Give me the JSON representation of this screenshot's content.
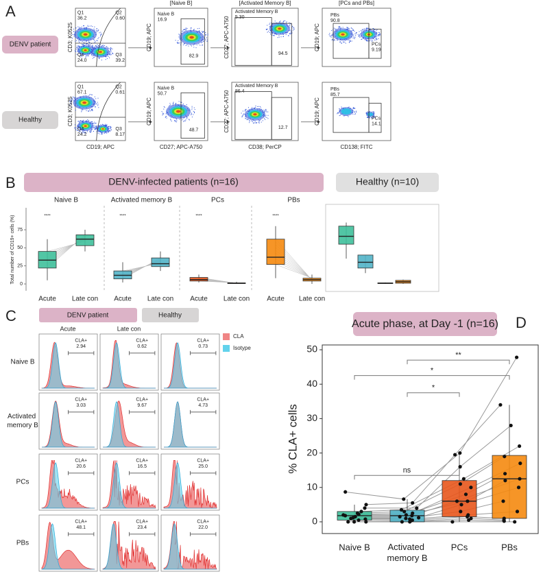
{
  "panel_a": {
    "label": "A",
    "headers": [
      "[Naive B]",
      "[Activated Memory B]",
      "[PCs and PBs]"
    ],
    "x_labels": [
      "CD19; APC",
      "CD27; APC-A750",
      "CD38; PerCP",
      "CD138; FITC"
    ],
    "y_labels": [
      "CD3; K0525",
      "CD19; APC",
      "CD27; APC-A750",
      "CD19; APC"
    ],
    "rows": [
      {
        "label": "DENV patient",
        "plots": [
          {
            "gates": [
              {
                "name": "Q1",
                "value": "36.2"
              },
              {
                "name": "Q2",
                "value": "0.60"
              },
              {
                "name": "Q3",
                "value": "39.2"
              },
              {
                "name": "Q4",
                "value": "24.0"
              }
            ]
          },
          {
            "gates": [
              {
                "name": "Naive B",
                "value": "16.9"
              },
              {
                "value": "82.9"
              }
            ]
          },
          {
            "gates": [
              {
                "name": "Activated Memory B",
                "value": "5.30"
              },
              {
                "value": "94.5"
              }
            ]
          },
          {
            "gates": [
              {
                "name": "PBs",
                "value": "90.8"
              },
              {
                "name": "PCs",
                "value": "9.19"
              }
            ]
          }
        ]
      },
      {
        "label": "Healthy",
        "plots": [
          {
            "gates": [
              {
                "name": "Q1",
                "value": "67.1"
              },
              {
                "name": "Q2",
                "value": "0.61"
              },
              {
                "name": "Q3",
                "value": "8.17"
              },
              {
                "name": "Q4",
                "value": "24.2"
              }
            ]
          },
          {
            "gates": [
              {
                "name": "Naive B",
                "value": "50.7"
              },
              {
                "value": "48.7"
              }
            ]
          },
          {
            "gates": [
              {
                "name": "Activated Memory B",
                "value": "86.4"
              },
              {
                "value": "12.7"
              }
            ]
          },
          {
            "gates": [
              {
                "name": "PBs",
                "value": "85.7"
              },
              {
                "name": "PCs",
                "value": "14.1"
              }
            ]
          }
        ]
      }
    ]
  },
  "panel_c": {
    "label": "C",
    "groups": [
      "DENV patient",
      "Healthy"
    ],
    "columns": [
      "Acute",
      "Late con"
    ],
    "rows": [
      "Naive B",
      "Activated memory B",
      "PCs",
      "PBs"
    ],
    "legend": [
      {
        "name": "CLA",
        "color": "#f08585"
      },
      {
        "name": "Isotype",
        "color": "#62d2ec"
      }
    ],
    "gate_label": "CLA+",
    "values": [
      [
        "2.94",
        "0.62",
        "0.73"
      ],
      [
        "3.03",
        "9.67",
        "4.73"
      ],
      [
        "20.6",
        "16.5",
        "25.0"
      ],
      [
        "48.1",
        "23.4",
        "22.0"
      ]
    ]
  },
  "chart_data": [
    {
      "type": "box",
      "panel": "B",
      "banners": [
        "DENV-infected patients (n=16)",
        "Healthy (n=10)"
      ],
      "groups": [
        "Naive B",
        "Activated memory B",
        "PCs",
        "PBs"
      ],
      "categories": [
        "Acute",
        "Late con"
      ],
      "colors": [
        "#3fc09b",
        "#52b4c8",
        "#e8561c",
        "#f5890f"
      ],
      "significance": [
        "****",
        "****",
        "****",
        "****"
      ],
      "y_label": "Total number of CD19+ cells (%)",
      "ylim": [
        -5,
        100
      ],
      "yticks": [
        0,
        25,
        50,
        75
      ],
      "boxes": [
        [
          {
            "whisker_low": 5,
            "q1": 22,
            "median": 33,
            "q3": 45,
            "whisker_high": 62
          },
          {
            "whisker_low": 45,
            "q1": 53,
            "median": 62,
            "q3": 68,
            "whisker_high": 75
          }
        ],
        [
          {
            "whisker_low": 2,
            "q1": 7,
            "median": 12,
            "q3": 18,
            "whisker_high": 30
          },
          {
            "whisker_low": 18,
            "q1": 24,
            "median": 28,
            "q3": 36,
            "whisker_high": 45
          }
        ],
        [
          {
            "whisker_low": 2,
            "q1": 4,
            "median": 6,
            "q3": 9,
            "whisker_high": 13
          },
          {
            "whisker_low": 0,
            "q1": 0.5,
            "median": 1,
            "q3": 1.5,
            "whisker_high": 3
          }
        ],
        [
          {
            "whisker_low": 8,
            "q1": 27,
            "median": 37,
            "q3": 62,
            "whisker_high": 80
          },
          {
            "whisker_low": 0,
            "q1": 4,
            "median": 6,
            "q3": 8,
            "whisker_high": 13
          }
        ]
      ],
      "healthy_boxes": [
        {
          "whisker_low": 35,
          "q1": 55,
          "median": 66,
          "q3": 80,
          "whisker_high": 85
        },
        {
          "whisker_low": 15,
          "q1": 22,
          "median": 30,
          "q3": 40,
          "whisker_high": 40
        },
        {
          "whisker_low": 0,
          "q1": 0.5,
          "median": 1,
          "q3": 1.5,
          "whisker_high": 2
        },
        {
          "whisker_low": 0,
          "q1": 1,
          "median": 3,
          "q3": 5,
          "whisker_high": 6
        }
      ]
    },
    {
      "type": "box",
      "panel": "D",
      "title": "Acute phase, at Day -1 (n=16)",
      "y_label": "% CLA+ cells",
      "categories": [
        "Naive B",
        "Activated memory B",
        "PCs",
        "PBs"
      ],
      "colors": [
        "#3fc09b",
        "#52b4c8",
        "#e8561c",
        "#f5890f"
      ],
      "ylim": [
        -3.4,
        51.4
      ],
      "yticks": [
        0,
        10,
        20,
        30,
        40,
        50
      ],
      "boxes": [
        {
          "whisker_low": 0,
          "q1": 0.5,
          "median": 1.8,
          "q3": 3,
          "whisker_high": 5
        },
        {
          "whisker_low": 0,
          "q1": 0,
          "median": 1.8,
          "q3": 3.4,
          "whisker_high": 6.6
        },
        {
          "whisker_low": 0,
          "q1": 1.5,
          "median": 6,
          "q3": 12,
          "whisker_high": 20
        },
        {
          "whisker_low": 0,
          "q1": 1,
          "median": 12.5,
          "q3": 19.3,
          "whisker_high": 34
        }
      ],
      "points": [
        [
          8.7,
          5,
          4,
          3,
          2.5,
          2.2,
          2,
          1.8,
          1.5,
          1.2,
          1,
          0.8,
          0.5,
          0,
          0,
          0
        ],
        [
          6.6,
          5.5,
          4,
          3.5,
          3,
          2.5,
          2,
          1.8,
          1.5,
          1.2,
          1,
          0.8,
          0.5,
          0.2,
          0,
          0
        ],
        [
          20,
          19.5,
          16,
          12.5,
          11,
          10,
          8,
          6,
          6,
          5,
          3,
          2,
          1.5,
          1,
          0.5,
          0
        ],
        [
          47.8,
          34,
          28,
          22,
          19,
          17,
          14,
          12.5,
          12,
          10,
          6,
          3,
          1,
          0.5,
          0.2,
          0
        ]
      ],
      "comparisons": [
        {
          "from": 0,
          "to": 2,
          "y": 13.5,
          "label": "ns"
        },
        {
          "from": 1,
          "to": 2,
          "y": 37.5,
          "label": "*"
        },
        {
          "from": 0,
          "to": 3,
          "y": 42.5,
          "label": "*"
        },
        {
          "from": 1,
          "to": 3,
          "y": 47,
          "label": "**"
        }
      ]
    }
  ]
}
